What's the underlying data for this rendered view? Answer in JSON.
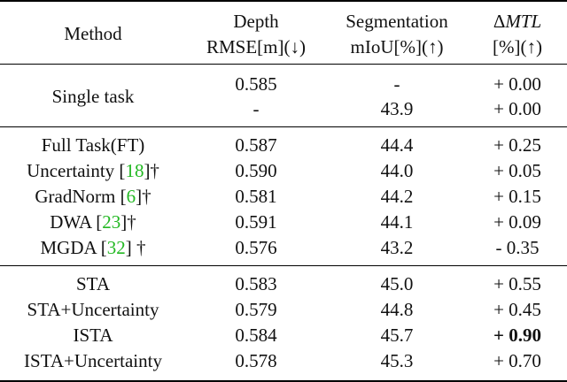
{
  "header": {
    "method": "Method",
    "depth_line1": "Depth",
    "depth_line2": "RMSE[m](↓)",
    "seg_line1": "Segmentation",
    "seg_line2": "mIoU[%](↑)",
    "delta_symbol": "Δ",
    "delta_name": "MTL",
    "delta_line2": "[%](↑)"
  },
  "single_task": {
    "method": "Single task",
    "rows": [
      {
        "depth": "0.585",
        "seg": "-",
        "delta": "+ 0.00"
      },
      {
        "depth": "-",
        "seg": "43.9",
        "delta": "+ 0.00"
      }
    ]
  },
  "group2": [
    {
      "name": "Full Task(FT)",
      "ref": "",
      "suffix": "",
      "depth": "0.587",
      "seg": "44.4",
      "delta": "+ 0.25"
    },
    {
      "name": "Uncertainty [",
      "ref": "18",
      "suffix": "]†",
      "depth": "0.590",
      "seg": "44.0",
      "delta": "+ 0.05"
    },
    {
      "name": "GradNorm [",
      "ref": "6",
      "suffix": "]†",
      "depth": "0.581",
      "seg": "44.2",
      "delta": "+ 0.15"
    },
    {
      "name": "DWA [",
      "ref": "23",
      "suffix": "]†",
      "depth": "0.591",
      "seg": "44.1",
      "delta": "+ 0.09"
    },
    {
      "name": "MGDA [",
      "ref": "32",
      "suffix": "] †",
      "depth": "0.576",
      "seg": "43.2",
      "delta": "- 0.35"
    }
  ],
  "group3": [
    {
      "name": "STA",
      "depth": "0.583",
      "seg": "45.0",
      "delta": "+ 0.55",
      "delta_bold": false
    },
    {
      "name": "STA+Uncertainty",
      "depth": "0.579",
      "seg": "44.8",
      "delta": "+ 0.45",
      "delta_bold": false
    },
    {
      "name": "ISTA",
      "depth": "0.584",
      "seg": "45.7",
      "delta": "+ 0.90",
      "delta_bold": true
    },
    {
      "name": "ISTA+Uncertainty",
      "depth": "0.578",
      "seg": "45.3",
      "delta": "+ 0.70",
      "delta_bold": false
    }
  ],
  "colors": {
    "reference_link": "#22b822",
    "rule": "#000000"
  }
}
